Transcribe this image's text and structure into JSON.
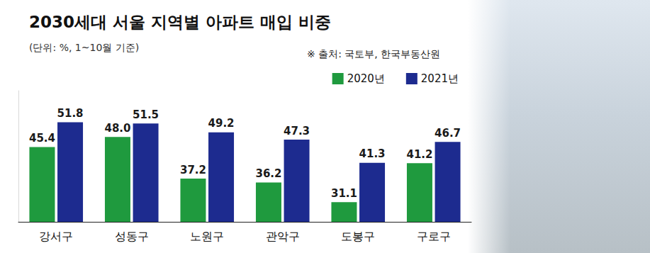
{
  "chart_data": {
    "type": "bar",
    "title": "2030세대 서울 지역별 아파트 매입 비중",
    "subtitle": "(단위: %, 1~10월 기준)",
    "annotations": [
      "※ 출처: 국토부, 한국부동산원"
    ],
    "categories": [
      "강서구",
      "성동구",
      "노원구",
      "관악구",
      "도봉구",
      "구로구"
    ],
    "series": [
      {
        "name": "2020년",
        "color": "#1f9a3e",
        "values": [
          45.4,
          48.0,
          37.2,
          36.2,
          31.1,
          41.2
        ],
        "value_labels": [
          "45.4",
          "48.0",
          "37.2",
          "36.2",
          "31.1",
          "41.2"
        ]
      },
      {
        "name": "2021년",
        "color": "#1d2b8f",
        "values": [
          51.8,
          51.5,
          49.2,
          47.3,
          41.3,
          46.7
        ]
      }
    ],
    "ylim": [
      26,
      60
    ],
    "grid": false,
    "legend": "top-right",
    "data_labels": true,
    "tick_labels": "x"
  }
}
